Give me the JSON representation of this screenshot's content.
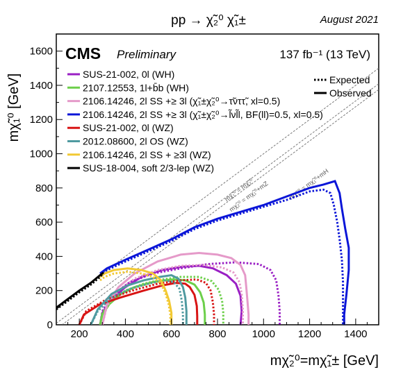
{
  "chart_data": {
    "type": "line",
    "process": "pp → χ̃₂⁰ χ̃₁±",
    "date": "August 2021",
    "experiment": "CMS",
    "status": "Preliminary",
    "lumi": "137 fb⁻¹ (13 TeV)",
    "xlabel": "mχ̃₂⁰=mχ̃₁± [GeV]",
    "ylabel": "mχ̃₁⁰ [GeV]",
    "xlim": [
      100,
      1500
    ],
    "ylim": [
      0,
      1700
    ],
    "xticks": [
      200,
      400,
      600,
      800,
      1000,
      1200,
      1400
    ],
    "yticks": [
      0,
      200,
      400,
      600,
      800,
      1000,
      1200,
      1400,
      1600
    ],
    "style_legend": [
      {
        "label": "Expected",
        "style": "dotted"
      },
      {
        "label": "Observed",
        "style": "solid"
      }
    ],
    "diagonals": [
      {
        "label": "mχ̃₁⁰ = mχ̃₂⁰",
        "offset": 0
      },
      {
        "label": "mχ̃₂⁰ = mχ̃₁⁰+mZ",
        "offset": 91
      },
      {
        "label": "mχ̃₂⁰ = mχ̃₁⁰+mH",
        "offset": 125
      }
    ],
    "series": [
      {
        "name": "SUS-21-002, 0l (WH)",
        "color": "#9a1fc4",
        "observed": [
          [
            290,
            0
          ],
          [
            300,
            70
          ],
          [
            340,
            150
          ],
          [
            400,
            220
          ],
          [
            470,
            280
          ],
          [
            560,
            320
          ],
          [
            650,
            340
          ],
          [
            720,
            345
          ],
          [
            780,
            330
          ],
          [
            840,
            290
          ],
          [
            880,
            240
          ],
          [
            900,
            170
          ],
          [
            905,
            80
          ],
          [
            900,
            0
          ]
        ],
        "expected": [
          [
            290,
            0
          ],
          [
            300,
            80
          ],
          [
            340,
            170
          ],
          [
            420,
            250
          ],
          [
            520,
            300
          ],
          [
            640,
            330
          ],
          [
            760,
            355
          ],
          [
            880,
            365
          ],
          [
            980,
            355
          ],
          [
            1030,
            320
          ],
          [
            1055,
            260
          ],
          [
            1065,
            170
          ],
          [
            1070,
            80
          ],
          [
            1070,
            0
          ]
        ]
      },
      {
        "name": "2107.12553, 1l+b̄b (WH)",
        "color": "#6ccf4a",
        "observed": [
          [
            290,
            0
          ],
          [
            300,
            60
          ],
          [
            330,
            120
          ],
          [
            380,
            180
          ],
          [
            440,
            220
          ],
          [
            520,
            250
          ],
          [
            600,
            265
          ],
          [
            660,
            260
          ],
          [
            700,
            235
          ],
          [
            725,
            190
          ],
          [
            740,
            130
          ],
          [
            745,
            60
          ],
          [
            745,
            0
          ]
        ],
        "expected": [
          [
            290,
            0
          ],
          [
            300,
            70
          ],
          [
            340,
            140
          ],
          [
            400,
            200
          ],
          [
            480,
            240
          ],
          [
            560,
            265
          ],
          [
            640,
            280
          ],
          [
            720,
            280
          ],
          [
            775,
            255
          ],
          [
            805,
            205
          ],
          [
            820,
            140
          ],
          [
            825,
            70
          ],
          [
            825,
            0
          ]
        ]
      },
      {
        "name": "2106.14246, 2l SS +≥ 3l (χ̃₁±χ̃₂⁰→τ̃νττ̃, xl=0.5)",
        "color": "#e59ac9",
        "observed": [
          [
            300,
            0
          ],
          [
            320,
            120
          ],
          [
            370,
            220
          ],
          [
            440,
            300
          ],
          [
            540,
            370
          ],
          [
            640,
            410
          ],
          [
            720,
            420
          ],
          [
            800,
            410
          ],
          [
            860,
            390
          ],
          [
            900,
            350
          ],
          [
            920,
            290
          ],
          [
            925,
            220
          ],
          [
            930,
            140
          ],
          [
            935,
            60
          ],
          [
            935,
            0
          ]
        ],
        "expected": [
          [
            300,
            0
          ],
          [
            320,
            110
          ],
          [
            370,
            200
          ],
          [
            440,
            270
          ],
          [
            540,
            320
          ],
          [
            640,
            345
          ],
          [
            740,
            350
          ],
          [
            820,
            335
          ],
          [
            870,
            305
          ],
          [
            895,
            250
          ],
          [
            905,
            180
          ],
          [
            910,
            90
          ],
          [
            910,
            0
          ]
        ]
      },
      {
        "name": "2106.14246, 2l SS +≥ 3l (χ̃₁±χ̃₂⁰→l̃νl̃l, BF(ll)=0.5, xl=0.5)",
        "color": "#0b16d8",
        "observed": [
          [
            290,
            300
          ],
          [
            320,
            330
          ],
          [
            400,
            380
          ],
          [
            500,
            440
          ],
          [
            600,
            500
          ],
          [
            700,
            570
          ],
          [
            800,
            620
          ],
          [
            900,
            660
          ],
          [
            1000,
            700
          ],
          [
            1100,
            750
          ],
          [
            1200,
            800
          ],
          [
            1260,
            820
          ],
          [
            1310,
            840
          ],
          [
            1330,
            770
          ],
          [
            1340,
            680
          ],
          [
            1355,
            560
          ],
          [
            1370,
            450
          ],
          [
            1370,
            320
          ],
          [
            1360,
            180
          ],
          [
            1350,
            60
          ],
          [
            1350,
            0
          ]
        ],
        "expected": [
          [
            290,
            290
          ],
          [
            320,
            320
          ],
          [
            400,
            370
          ],
          [
            500,
            430
          ],
          [
            600,
            490
          ],
          [
            700,
            560
          ],
          [
            800,
            610
          ],
          [
            900,
            650
          ],
          [
            1000,
            690
          ],
          [
            1100,
            730
          ],
          [
            1200,
            780
          ],
          [
            1260,
            790
          ],
          [
            1290,
            770
          ],
          [
            1305,
            700
          ],
          [
            1320,
            600
          ],
          [
            1330,
            500
          ],
          [
            1340,
            380
          ],
          [
            1345,
            250
          ],
          [
            1345,
            120
          ],
          [
            1345,
            0
          ]
        ]
      },
      {
        "name": "SUS-21-002, 0l (WZ)",
        "color": "#d81414",
        "observed": [
          [
            200,
            0
          ],
          [
            220,
            60
          ],
          [
            290,
            120
          ],
          [
            380,
            160
          ],
          [
            480,
            200
          ],
          [
            560,
            230
          ],
          [
            620,
            245
          ],
          [
            660,
            240
          ],
          [
            680,
            220
          ],
          [
            700,
            175
          ],
          [
            710,
            110
          ],
          [
            712,
            50
          ],
          [
            712,
            0
          ]
        ],
        "expected": [
          [
            200,
            0
          ],
          [
            230,
            80
          ],
          [
            320,
            150
          ],
          [
            430,
            200
          ],
          [
            540,
            240
          ],
          [
            640,
            260
          ],
          [
            710,
            265
          ],
          [
            750,
            245
          ],
          [
            770,
            200
          ],
          [
            780,
            130
          ],
          [
            785,
            60
          ],
          [
            785,
            0
          ]
        ]
      },
      {
        "name": "2012.08600, 2l OS (WZ)",
        "color": "#4f9aa0",
        "observed": [
          [
            250,
            0
          ],
          [
            280,
            90
          ],
          [
            340,
            180
          ],
          [
            410,
            230
          ],
          [
            480,
            260
          ],
          [
            550,
            280
          ],
          [
            600,
            290
          ],
          [
            630,
            270
          ],
          [
            650,
            220
          ],
          [
            660,
            160
          ],
          [
            665,
            80
          ],
          [
            665,
            0
          ]
        ],
        "expected": [
          [
            250,
            0
          ],
          [
            280,
            80
          ],
          [
            340,
            160
          ],
          [
            420,
            210
          ],
          [
            500,
            240
          ],
          [
            570,
            260
          ],
          [
            610,
            250
          ],
          [
            635,
            210
          ],
          [
            645,
            140
          ],
          [
            650,
            60
          ],
          [
            650,
            0
          ]
        ]
      },
      {
        "name": "2106.14246, 2l SS + ≥3l (WZ)",
        "color": "#f2c933",
        "observed": [
          [
            290,
            280
          ],
          [
            310,
            300
          ],
          [
            350,
            320
          ],
          [
            410,
            330
          ],
          [
            470,
            320
          ],
          [
            520,
            300
          ],
          [
            555,
            260
          ],
          [
            575,
            200
          ],
          [
            590,
            140
          ],
          [
            600,
            70
          ],
          [
            600,
            0
          ]
        ],
        "expected": [
          [
            290,
            260
          ],
          [
            310,
            280
          ],
          [
            350,
            300
          ],
          [
            410,
            310
          ],
          [
            470,
            300
          ],
          [
            520,
            280
          ],
          [
            555,
            240
          ],
          [
            575,
            180
          ],
          [
            588,
            120
          ],
          [
            595,
            60
          ],
          [
            595,
            0
          ]
        ]
      },
      {
        "name": "SUS-18-004, soft 2/3-lep (WZ)",
        "color": "#000000",
        "observed": [
          [
            100,
            100
          ],
          [
            150,
            150
          ],
          [
            200,
            200
          ],
          [
            250,
            245
          ],
          [
            290,
            290
          ],
          [
            305,
            305
          ]
        ],
        "expected": [
          [
            100,
            90
          ],
          [
            150,
            140
          ],
          [
            200,
            190
          ],
          [
            250,
            235
          ],
          [
            290,
            280
          ],
          [
            300,
            295
          ]
        ]
      }
    ]
  }
}
